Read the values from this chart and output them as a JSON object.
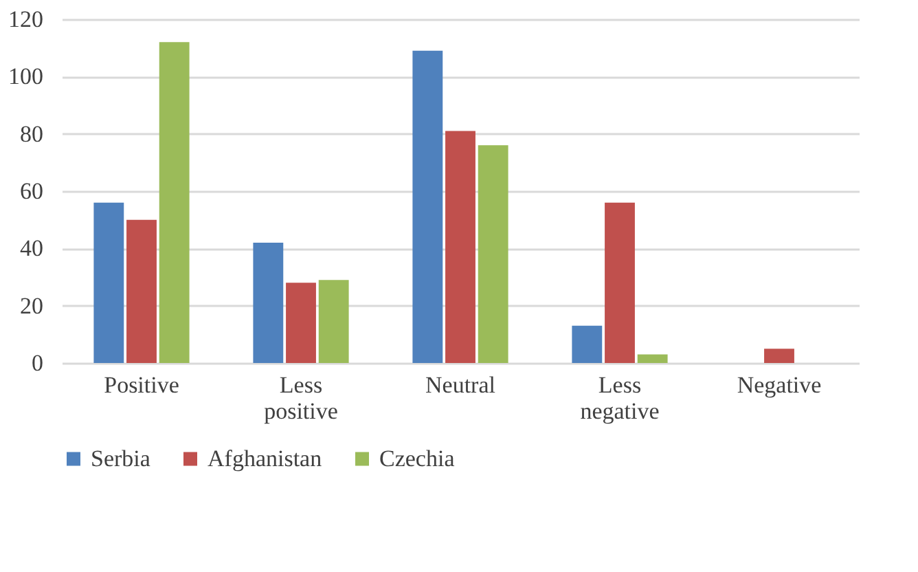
{
  "chart_data": {
    "type": "bar",
    "categories": [
      "Positive",
      "Less positive",
      "Neutral",
      "Less negative",
      "Negative"
    ],
    "series": [
      {
        "name": "Serbia",
        "color": "#4f81bd",
        "values": [
          56,
          42,
          109,
          13,
          null
        ]
      },
      {
        "name": "Afghanistan",
        "color": "#c0504d",
        "values": [
          50,
          28,
          81,
          56,
          5
        ]
      },
      {
        "name": "Czechia",
        "color": "#9bbb59",
        "values": [
          112,
          29,
          76,
          3,
          null
        ]
      }
    ],
    "ylim": [
      0,
      120
    ],
    "yticks": [
      0,
      20,
      40,
      60,
      80,
      100,
      120
    ],
    "grid": "y",
    "legend": "bottom"
  }
}
